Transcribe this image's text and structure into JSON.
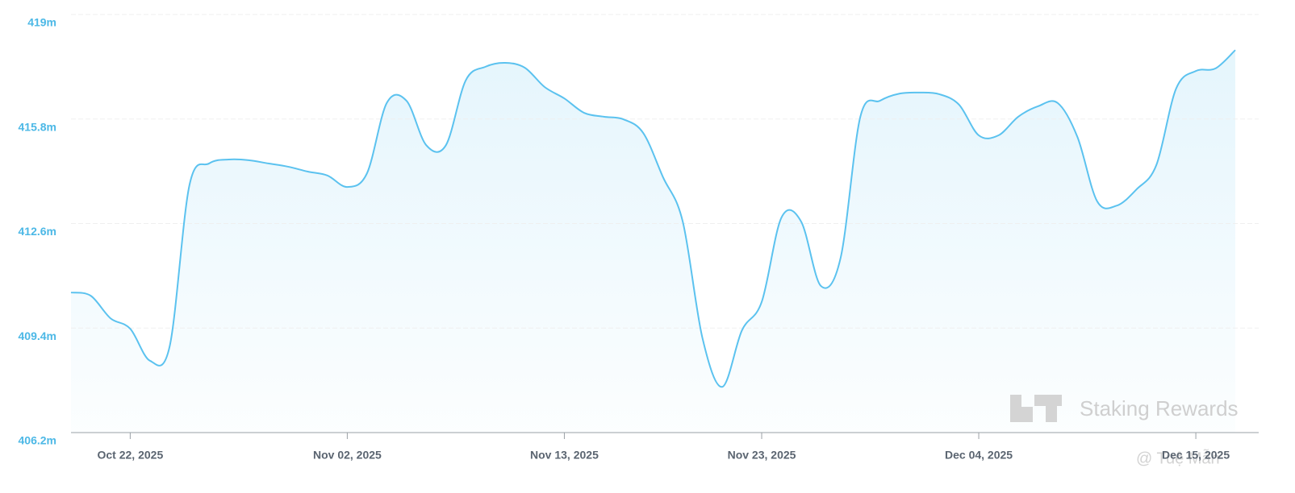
{
  "chart_data": {
    "type": "area",
    "watermark": "Staking Rewards",
    "credit": "@ Tuệ Mẫn",
    "color": "#5bc2ef",
    "grid": true,
    "xlim": [
      "2025-10-19",
      "2025-12-17"
    ],
    "xticks": [
      {
        "value": "2025-10-22",
        "label": "Oct 22, 2025"
      },
      {
        "value": "2025-11-02",
        "label": "Nov 02, 2025"
      },
      {
        "value": "2025-11-13",
        "label": "Nov 13, 2025"
      },
      {
        "value": "2025-11-23",
        "label": "Nov 23, 2025"
      },
      {
        "value": "2025-12-04",
        "label": "Dec 04, 2025"
      },
      {
        "value": "2025-12-15",
        "label": "Dec 15, 2025"
      }
    ],
    "ylim": [
      406.2,
      419
    ],
    "yticks": [
      {
        "value": 406.2,
        "label": "406.2m"
      },
      {
        "value": 409.4,
        "label": "409.4m"
      },
      {
        "value": 412.6,
        "label": "412.6m"
      },
      {
        "value": 415.8,
        "label": "415.8m"
      },
      {
        "value": 419,
        "label": "419m"
      }
    ],
    "x": [
      "2025-10-19",
      "2025-10-20",
      "2025-10-21",
      "2025-10-22",
      "2025-10-23",
      "2025-10-24",
      "2025-10-25",
      "2025-10-26",
      "2025-10-27",
      "2025-10-28",
      "2025-10-29",
      "2025-10-30",
      "2025-10-31",
      "2025-11-01",
      "2025-11-02",
      "2025-11-03",
      "2025-11-04",
      "2025-11-05",
      "2025-11-06",
      "2025-11-07",
      "2025-11-08",
      "2025-11-09",
      "2025-11-10",
      "2025-11-11",
      "2025-11-12",
      "2025-11-13",
      "2025-11-14",
      "2025-11-15",
      "2025-11-16",
      "2025-11-17",
      "2025-11-18",
      "2025-11-19",
      "2025-11-20",
      "2025-11-21",
      "2025-11-22",
      "2025-11-23",
      "2025-11-24",
      "2025-11-25",
      "2025-11-26",
      "2025-11-27",
      "2025-11-28",
      "2025-11-29",
      "2025-11-30",
      "2025-12-01",
      "2025-12-02",
      "2025-12-03",
      "2025-12-04",
      "2025-12-05",
      "2025-12-06",
      "2025-12-07",
      "2025-12-08",
      "2025-12-09",
      "2025-12-10",
      "2025-12-11",
      "2025-12-12",
      "2025-12-13",
      "2025-12-14",
      "2025-12-15",
      "2025-12-16",
      "2025-12-17"
    ],
    "values": [
      410.49,
      410.39,
      409.7,
      409.38,
      408.4,
      408.84,
      413.77,
      414.44,
      414.56,
      414.54,
      414.44,
      414.34,
      414.19,
      414.07,
      413.72,
      414.14,
      416.29,
      416.36,
      415.0,
      415.0,
      416.98,
      417.4,
      417.52,
      417.37,
      416.78,
      416.43,
      415.99,
      415.87,
      415.79,
      415.37,
      414.02,
      412.66,
      409.09,
      407.6,
      409.33,
      410.2,
      412.78,
      412.66,
      410.69,
      411.55,
      415.87,
      416.36,
      416.58,
      416.61,
      416.56,
      416.24,
      415.3,
      415.3,
      415.87,
      416.19,
      416.29,
      415.25,
      413.28,
      413.15,
      413.65,
      414.39,
      416.73,
      417.27,
      417.35,
      417.91
    ]
  }
}
